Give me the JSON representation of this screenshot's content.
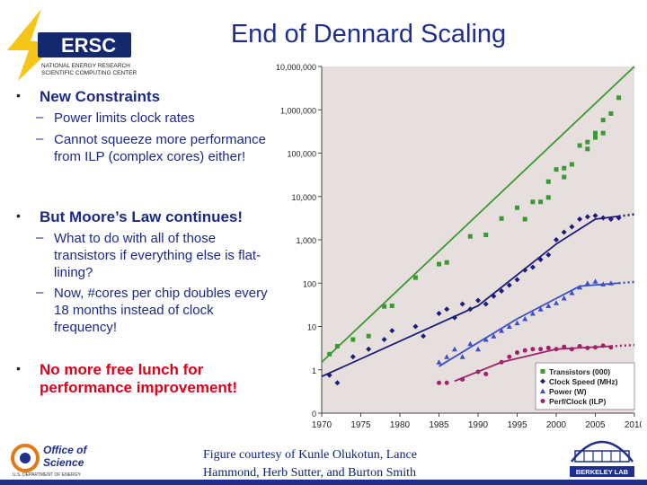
{
  "logo": {
    "text": "ERSC",
    "line1": "NATIONAL ENERGY RESEARCH",
    "line2": "SCIENTIFIC COMPUTING CENTER"
  },
  "title": "End of Dennard Scaling",
  "bullets": [
    {
      "label": "New Constraints",
      "subs": [
        "Power limits clock rates",
        "Cannot squeeze more performance from ILP (complex cores) either!"
      ]
    },
    {
      "label": "But Moore’s Law continues!",
      "subs": [
        "What to do with all of those transistors if everything else is flat-lining?",
        "Now, #cores per chip doubles every 18 months instead of clock frequency!"
      ]
    },
    {
      "label": "No more free lunch for performance improvement!",
      "subs": []
    }
  ],
  "bullet_markers": {
    "bullet": "•",
    "dash": "–"
  },
  "caption": "Figure courtesy of Kunle Olukotun, Lance Hammond, Herb Sutter, and Burton Smith",
  "office_logo": {
    "line1": "Office of",
    "line2": "Science",
    "line3": "U.S. DEPARTMENT OF ENERGY"
  },
  "berkeley_logo": {
    "text": "BERKELEY LAB"
  },
  "colors": {
    "title": "#1f2f8f",
    "accent_red": "#e0001a",
    "bullet_text": "#1b2a8a",
    "chart_bg": "#e6dfdd"
  },
  "chart_data": {
    "type": "scatter",
    "title": "",
    "xlabel": "",
    "ylabel": "",
    "y_scale": "log",
    "xlim": [
      1970,
      2010
    ],
    "ylim": [
      0.1,
      10000000
    ],
    "x_ticks": [
      1970,
      1975,
      1980,
      1985,
      1990,
      1995,
      2000,
      2005,
      2010
    ],
    "y_ticks": [
      {
        "value": 10000000,
        "label": "10,000,000"
      },
      {
        "value": 1000000,
        "label": "1,000,000"
      },
      {
        "value": 100000,
        "label": "100,000"
      },
      {
        "value": 10000,
        "label": "10,000"
      },
      {
        "value": 1000,
        "label": "1,000"
      },
      {
        "value": 100,
        "label": "100"
      },
      {
        "value": 10,
        "label": "10"
      },
      {
        "value": 1,
        "label": "1"
      },
      {
        "value": 0.1,
        "label": "0"
      }
    ],
    "grid": false,
    "legend_position": "bottom-right",
    "series": [
      {
        "name": "Transistors (000)",
        "color": "#3a9a32",
        "marker": "square",
        "points": [
          [
            1971,
            2.3
          ],
          [
            1972,
            3.5
          ],
          [
            1974,
            5
          ],
          [
            1976,
            6
          ],
          [
            1978,
            29
          ],
          [
            1979,
            30
          ],
          [
            1982,
            134
          ],
          [
            1985,
            275
          ],
          [
            1986,
            300
          ],
          [
            1989,
            1200
          ],
          [
            1991,
            1300
          ],
          [
            1993,
            3100
          ],
          [
            1995,
            5500
          ],
          [
            1996,
            3000
          ],
          [
            1997,
            7500
          ],
          [
            1998,
            7500
          ],
          [
            1999,
            9500
          ],
          [
            1999,
            22000
          ],
          [
            2000,
            42000
          ],
          [
            2001,
            28000
          ],
          [
            2001,
            45000
          ],
          [
            2002,
            55000
          ],
          [
            2003,
            150000
          ],
          [
            2004,
            125000
          ],
          [
            2004,
            180000
          ],
          [
            2005,
            290000
          ],
          [
            2005,
            230000
          ],
          [
            2006,
            580000
          ],
          [
            2006,
            290000
          ],
          [
            2007,
            820000
          ],
          [
            2008,
            1900000
          ]
        ],
        "trend": [
          [
            1970,
            1.5
          ],
          [
            2010,
            10000000
          ]
        ]
      },
      {
        "name": "Clock Speed (MHz)",
        "color": "#1d1d7a",
        "marker": "diamond",
        "points": [
          [
            1971,
            0.75
          ],
          [
            1972,
            0.5
          ],
          [
            1974,
            2
          ],
          [
            1976,
            3
          ],
          [
            1978,
            5
          ],
          [
            1979,
            8
          ],
          [
            1982,
            10
          ],
          [
            1983,
            6
          ],
          [
            1985,
            20
          ],
          [
            1986,
            25
          ],
          [
            1987,
            16
          ],
          [
            1988,
            33
          ],
          [
            1989,
            25
          ],
          [
            1990,
            40
          ],
          [
            1991,
            33
          ],
          [
            1992,
            50
          ],
          [
            1993,
            66
          ],
          [
            1994,
            90
          ],
          [
            1995,
            120
          ],
          [
            1996,
            200
          ],
          [
            1997,
            233
          ],
          [
            1998,
            350
          ],
          [
            1999,
            450
          ],
          [
            2000,
            1000
          ],
          [
            2001,
            1500
          ],
          [
            2002,
            2000
          ],
          [
            2003,
            3000
          ],
          [
            2004,
            3400
          ],
          [
            2005,
            3600
          ],
          [
            2006,
            3200
          ],
          [
            2007,
            3000
          ],
          [
            2008,
            3200
          ]
        ],
        "trend": [
          [
            1970,
            0.7
          ],
          [
            1990,
            30
          ],
          [
            2000,
            800
          ],
          [
            2005,
            3000
          ],
          [
            2008,
            3500
          ]
        ]
      },
      {
        "name": "Power (W)",
        "color": "#3b4fcc",
        "marker": "triangle",
        "points": [
          [
            1985,
            1.5
          ],
          [
            1986,
            2
          ],
          [
            1987,
            3
          ],
          [
            1988,
            2
          ],
          [
            1989,
            4
          ],
          [
            1990,
            3
          ],
          [
            1991,
            5
          ],
          [
            1992,
            6
          ],
          [
            1993,
            8
          ],
          [
            1994,
            10
          ],
          [
            1995,
            12
          ],
          [
            1996,
            15
          ],
          [
            1997,
            20
          ],
          [
            1998,
            25
          ],
          [
            1999,
            30
          ],
          [
            2000,
            35
          ],
          [
            2001,
            45
          ],
          [
            2002,
            60
          ],
          [
            2003,
            80
          ],
          [
            2004,
            100
          ],
          [
            2005,
            110
          ],
          [
            2006,
            95
          ],
          [
            2007,
            100
          ]
        ],
        "trend": [
          [
            1985,
            1.2
          ],
          [
            1995,
            15
          ],
          [
            2003,
            85
          ],
          [
            2008,
            100
          ]
        ]
      },
      {
        "name": "Perf/Clock (ILP)",
        "color": "#a0226b",
        "marker": "circle",
        "points": [
          [
            1985,
            0.5
          ],
          [
            1986,
            0.5
          ],
          [
            1988,
            0.6
          ],
          [
            1990,
            0.9
          ],
          [
            1991,
            0.8
          ],
          [
            1993,
            1.5
          ],
          [
            1994,
            2
          ],
          [
            1995,
            2.5
          ],
          [
            1996,
            2.8
          ],
          [
            1997,
            3
          ],
          [
            1998,
            3
          ],
          [
            1999,
            3.2
          ],
          [
            2000,
            3
          ],
          [
            2001,
            3.4
          ],
          [
            2002,
            3
          ],
          [
            2003,
            3.5
          ],
          [
            2004,
            3.2
          ],
          [
            2005,
            3.3
          ],
          [
            2006,
            3.6
          ],
          [
            2007,
            3.3
          ]
        ],
        "trend": [
          [
            1987,
            0.55
          ],
          [
            1993,
            1.5
          ],
          [
            2000,
            3
          ],
          [
            2007,
            3.5
          ]
        ]
      }
    ]
  }
}
